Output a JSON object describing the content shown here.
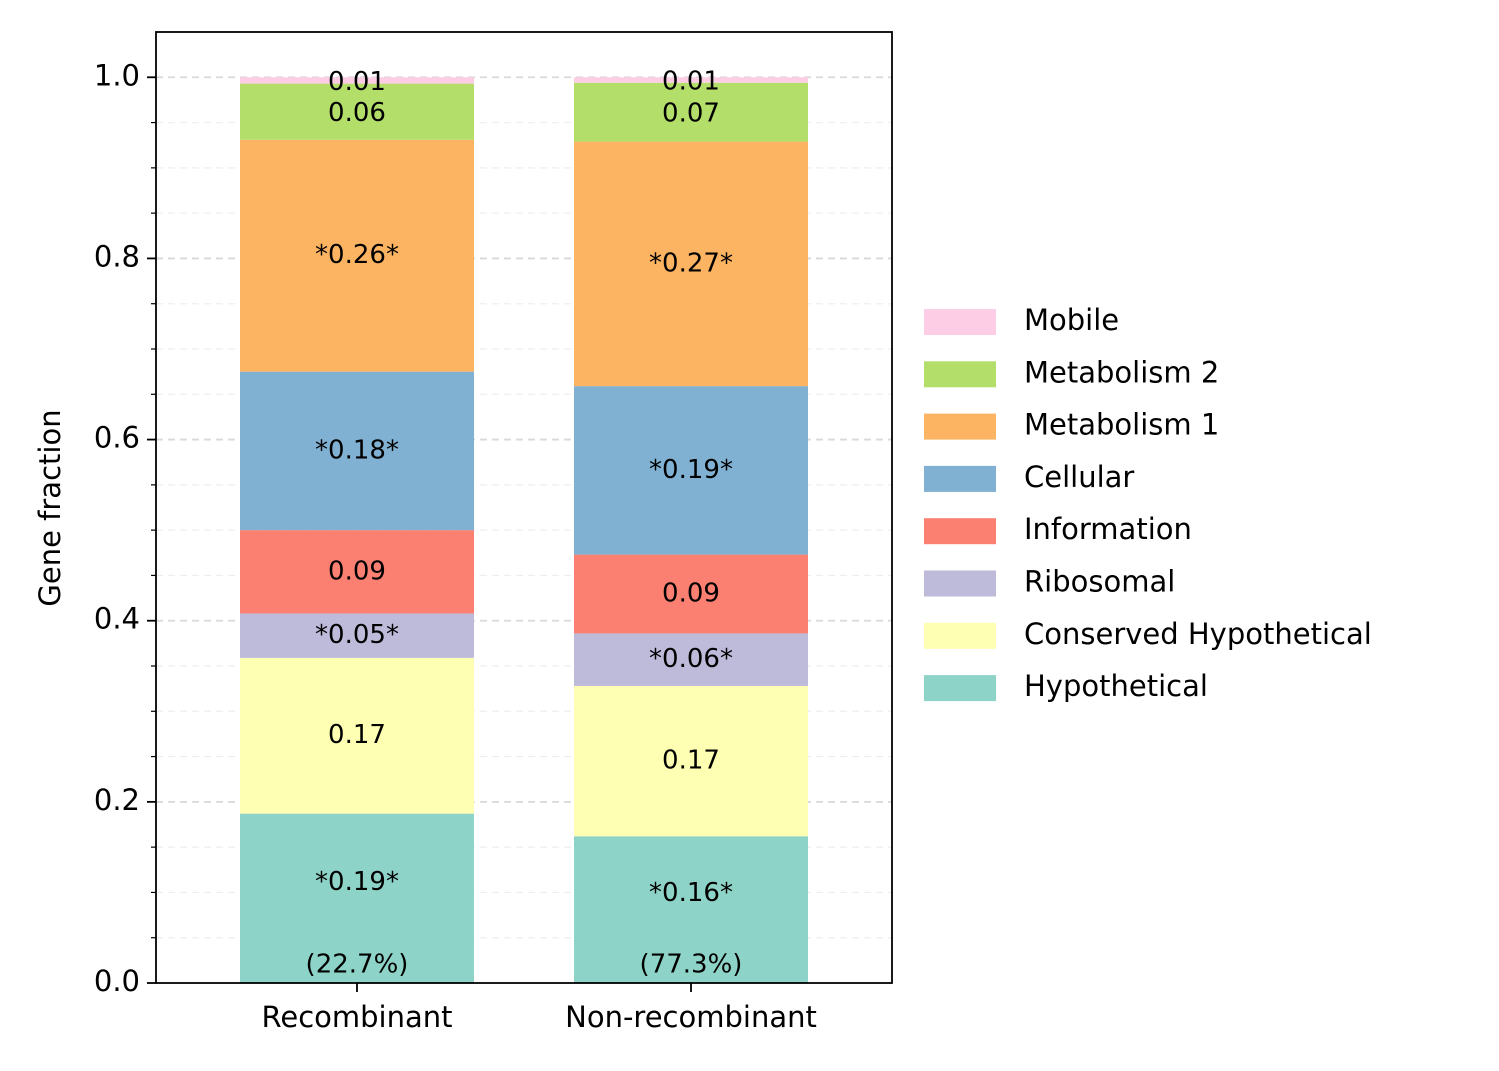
{
  "chart_data": {
    "type": "bar",
    "stacked": true,
    "title": "",
    "xlabel": "",
    "ylabel": "Gene fraction",
    "ylim": [
      0,
      1.05
    ],
    "yticks": [
      "0.0",
      "0.2",
      "0.4",
      "0.6",
      "0.8",
      "1.0"
    ],
    "grid": "horizontal dashed",
    "legend_position": "right",
    "categories": [
      "Recombinant",
      "Non-recombinant"
    ],
    "category_notes": [
      "(22.7%)",
      "(77.3%)"
    ],
    "series": [
      {
        "name": "Hypothetical",
        "color": "#8dd3c7",
        "values": [
          0.187,
          0.162
        ],
        "labels": [
          "*0.19*",
          "*0.16*"
        ]
      },
      {
        "name": "Conserved Hypothetical",
        "color": "#ffffb3",
        "values": [
          0.172,
          0.166
        ],
        "labels": [
          "0.17",
          "0.17"
        ]
      },
      {
        "name": "Ribosomal",
        "color": "#bebada",
        "values": [
          0.049,
          0.058
        ],
        "labels": [
          "*0.05*",
          "*0.06*"
        ]
      },
      {
        "name": "Information",
        "color": "#fb8072",
        "values": [
          0.092,
          0.087
        ],
        "labels": [
          "0.09",
          "0.09"
        ]
      },
      {
        "name": "Cellular",
        "color": "#80b1d3",
        "values": [
          0.175,
          0.186
        ],
        "labels": [
          "*0.18*",
          "*0.19*"
        ]
      },
      {
        "name": "Metabolism 1",
        "color": "#fdb462",
        "values": [
          0.256,
          0.27
        ],
        "labels": [
          "*0.26*",
          "*0.27*"
        ]
      },
      {
        "name": "Metabolism 2",
        "color": "#b3de69",
        "values": [
          0.062,
          0.065
        ],
        "labels": [
          "0.06",
          "0.07"
        ]
      },
      {
        "name": "Mobile",
        "color": "#fccde5",
        "values": [
          0.007,
          0.006
        ],
        "labels": [
          "0.01",
          "0.01"
        ]
      }
    ]
  }
}
